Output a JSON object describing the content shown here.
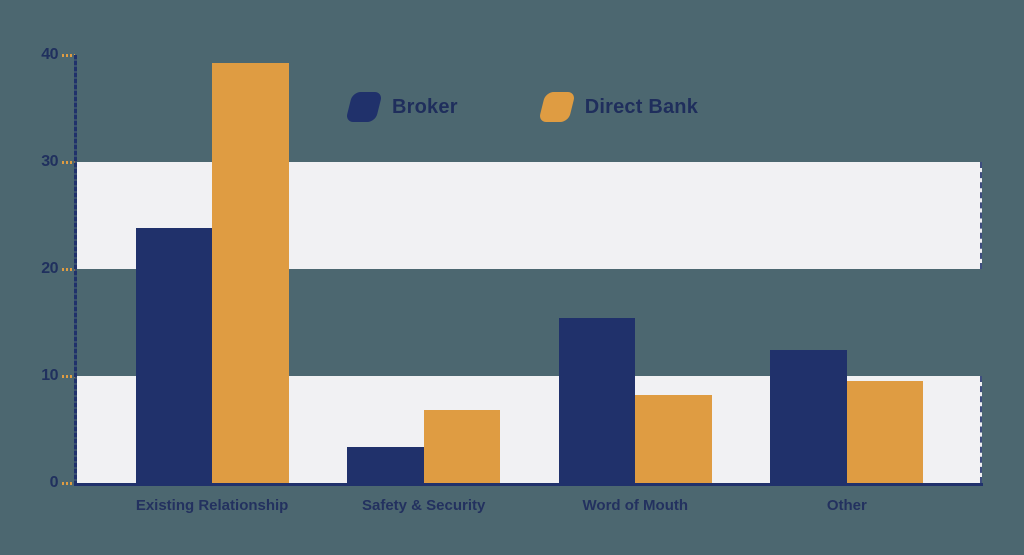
{
  "chart_data": {
    "type": "bar",
    "title": "",
    "xlabel": "",
    "ylabel": "",
    "categories": [
      "Existing Relationship",
      "Safety & Security",
      "Word of Mouth",
      "Other"
    ],
    "series": [
      {
        "name": "Broker",
        "color": "#20316B",
        "values": [
          23.8,
          3.4,
          15.4,
          12.4
        ]
      },
      {
        "name": "Direct Bank",
        "color": "#DF9C42",
        "values": [
          39.3,
          6.8,
          8.2,
          9.5
        ]
      }
    ],
    "ylim": [
      0,
      40
    ],
    "yticks": [
      0,
      10,
      20,
      30,
      40
    ],
    "legend": {
      "position": "top-center",
      "entries": [
        "Broker",
        "Direct Bank"
      ]
    },
    "grid": "alternating horizontal bands",
    "bands": [
      [
        0,
        10
      ],
      [
        20,
        30
      ]
    ]
  },
  "colors": {
    "background": "#4C6770",
    "band": "#F1F1F3",
    "axis": "#20316B",
    "tick_dash": "#DF9C42",
    "label_text": "#23315F",
    "broker": "#20316B",
    "direct_bank": "#DF9C42"
  }
}
